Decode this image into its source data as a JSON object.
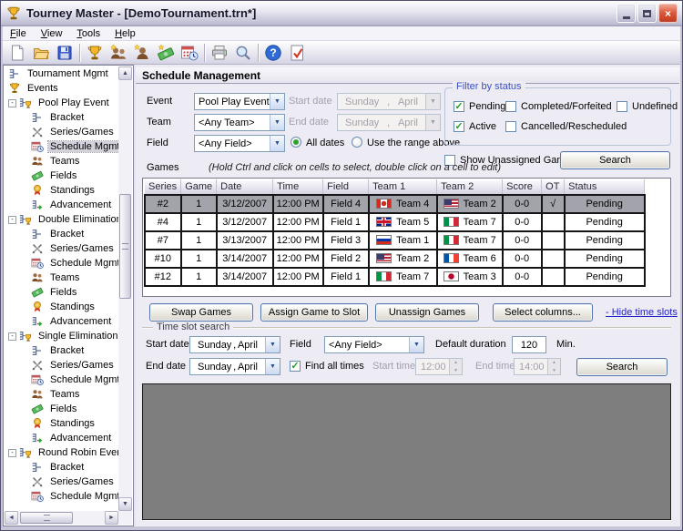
{
  "window": {
    "title": "Tourney Master - [DemoTournament.trn*]"
  },
  "menu": {
    "items": [
      "File",
      "View",
      "Tools",
      "Help"
    ]
  },
  "toolbar": {
    "items": [
      {
        "icon": "new-document"
      },
      {
        "icon": "open-folder"
      },
      {
        "icon": "save"
      },
      {
        "sep": true
      },
      {
        "icon": "tournament-trophy"
      },
      {
        "icon": "teams-star"
      },
      {
        "icon": "player-star"
      },
      {
        "icon": "fields-money"
      },
      {
        "icon": "schedule-calendar"
      },
      {
        "sep": true
      },
      {
        "icon": "print"
      },
      {
        "icon": "print-preview"
      },
      {
        "sep": true
      },
      {
        "icon": "help"
      },
      {
        "icon": "validate"
      }
    ]
  },
  "sidebar": {
    "items": [
      {
        "label": "Tournament Mgmt",
        "icon": "bracket",
        "level": 0
      },
      {
        "label": "Events",
        "icon": "trophy",
        "level": 0
      },
      {
        "label": "Pool Play Event",
        "icon": "event",
        "level": 1,
        "expander": "minus"
      },
      {
        "label": "Bracket",
        "icon": "bracket",
        "level": 2
      },
      {
        "label": "Series/Games",
        "icon": "swords",
        "level": 2
      },
      {
        "label": "Schedule Mgmt",
        "icon": "calendar",
        "level": 2,
        "selected": true
      },
      {
        "label": "Teams",
        "icon": "teams",
        "level": 2
      },
      {
        "label": "Fields",
        "icon": "money",
        "level": 2
      },
      {
        "label": "Standings",
        "icon": "medal",
        "level": 2
      },
      {
        "label": "Advancement",
        "icon": "advance",
        "level": 2
      },
      {
        "label": "Double Elimination Ev",
        "icon": "event",
        "level": 1,
        "expander": "minus"
      },
      {
        "label": "Bracket",
        "icon": "bracket",
        "level": 2
      },
      {
        "label": "Series/Games",
        "icon": "swords",
        "level": 2
      },
      {
        "label": "Schedule Mgmt",
        "icon": "calendar",
        "level": 2
      },
      {
        "label": "Teams",
        "icon": "teams",
        "level": 2
      },
      {
        "label": "Fields",
        "icon": "money",
        "level": 2
      },
      {
        "label": "Standings",
        "icon": "medal",
        "level": 2
      },
      {
        "label": "Advancement",
        "icon": "advance",
        "level": 2
      },
      {
        "label": "Single Elimination Eve",
        "icon": "event",
        "level": 1,
        "expander": "minus"
      },
      {
        "label": "Bracket",
        "icon": "bracket",
        "level": 2
      },
      {
        "label": "Series/Games",
        "icon": "swords",
        "level": 2
      },
      {
        "label": "Schedule Mgmt",
        "icon": "calendar",
        "level": 2
      },
      {
        "label": "Teams",
        "icon": "teams",
        "level": 2
      },
      {
        "label": "Fields",
        "icon": "money",
        "level": 2
      },
      {
        "label": "Standings",
        "icon": "medal",
        "level": 2
      },
      {
        "label": "Advancement",
        "icon": "advance",
        "level": 2
      },
      {
        "label": "Round Robin Event",
        "icon": "event",
        "level": 1,
        "expander": "minus"
      },
      {
        "label": "Bracket",
        "icon": "bracket",
        "level": 2
      },
      {
        "label": "Series/Games",
        "icon": "swords",
        "level": 2
      },
      {
        "label": "Schedule Mgmt",
        "icon": "calendar",
        "level": 2
      }
    ]
  },
  "main": {
    "title": "Schedule Management",
    "form": {
      "event_label": "Event",
      "event_value": "Pool Play Event",
      "team_label": "Team",
      "team_value": "<Any Team>",
      "field_label": "Field",
      "field_value": "<Any Field>",
      "start_date_label": "Start date",
      "end_date_label": "End date",
      "date_value": {
        "dow": "Sunday",
        "sep": ",",
        "month": "April"
      },
      "all_dates_label": "All dates",
      "use_range_label": "Use the range above"
    },
    "filter": {
      "title": "Filter by status",
      "rows": [
        [
          {
            "label": "Pending",
            "checked": true
          },
          {
            "label": "Completed/Forfeited",
            "checked": false
          },
          {
            "label": "Undefined",
            "checked": false
          }
        ],
        [
          {
            "label": "Active",
            "checked": true
          },
          {
            "label": "Cancelled/Rescheduled",
            "checked": false
          }
        ]
      ]
    },
    "show_unassigned": {
      "label": "Show Unassigned Games",
      "checked": false
    },
    "search_top_label": "Search",
    "games": {
      "label": "Games",
      "hint": "(Hold Ctrl and click on cells to select, double click on a cell to edit)"
    },
    "table": {
      "columns": [
        "Series",
        "Game",
        "Date",
        "Time",
        "Field",
        "Team 1",
        "Team 2",
        "Score",
        "OT",
        "Status"
      ],
      "rows": [
        {
          "series": "#2",
          "game": "1",
          "date": "3/12/2007",
          "time": "12:00 PM",
          "field": "Field 4",
          "team1": {
            "flag": "canada",
            "name": "Team 4"
          },
          "team2": {
            "flag": "usa",
            "name": "Team 2"
          },
          "score": "0-0",
          "ot": "√",
          "status": "Pending",
          "selected": true
        },
        {
          "series": "#4",
          "game": "1",
          "date": "3/12/2007",
          "time": "12:00 PM",
          "field": "Field 1",
          "team1": {
            "flag": "uk",
            "name": "Team 5"
          },
          "team2": {
            "flag": "italy",
            "name": "Team 7"
          },
          "score": "0-0",
          "ot": "",
          "status": "Pending",
          "selected": false
        },
        {
          "series": "#7",
          "game": "1",
          "date": "3/13/2007",
          "time": "12:00 PM",
          "field": "Field 3",
          "team1": {
            "flag": "russia",
            "name": "Team 1"
          },
          "team2": {
            "flag": "italy",
            "name": "Team 7"
          },
          "score": "0-0",
          "ot": "",
          "status": "Pending",
          "selected": false
        },
        {
          "series": "#10",
          "game": "1",
          "date": "3/14/2007",
          "time": "12:00 PM",
          "field": "Field 2",
          "team1": {
            "flag": "usa",
            "name": "Team 2"
          },
          "team2": {
            "flag": "france",
            "name": "Team 6"
          },
          "score": "0-0",
          "ot": "",
          "status": "Pending",
          "selected": false
        },
        {
          "series": "#12",
          "game": "1",
          "date": "3/14/2007",
          "time": "12:00 PM",
          "field": "Field 1",
          "team1": {
            "flag": "italy",
            "name": "Team 7"
          },
          "team2": {
            "flag": "japan",
            "name": "Team 3"
          },
          "score": "0-0",
          "ot": "",
          "status": "Pending",
          "selected": false
        }
      ]
    },
    "actions": {
      "swap": "Swap Games",
      "assign": "Assign Game to Slot",
      "unassign": "Unassign Games",
      "columns": "Select columns...",
      "hide_link": "- Hide time slots"
    },
    "timeslot": {
      "title": "Time slot search",
      "start_date_label": "Start date",
      "end_date_label": "End date",
      "date_value": {
        "dow": "Sunday",
        "sep": ",",
        "month": "April"
      },
      "field_label": "Field",
      "field_value": "<Any Field>",
      "duration_label": "Default duration",
      "duration_value": "120",
      "minutes_label": "Min.",
      "find_all": {
        "label": "Find all times",
        "checked": true
      },
      "start_time_label": "Start time",
      "start_time_value": "12:00",
      "end_time_label": "End time",
      "end_time_value": "14:00",
      "search_label": "Search"
    }
  },
  "colors": {
    "accent_blue": "#3a50c0",
    "selected_row": "#a3a3ab",
    "check_green": "#21a121"
  }
}
